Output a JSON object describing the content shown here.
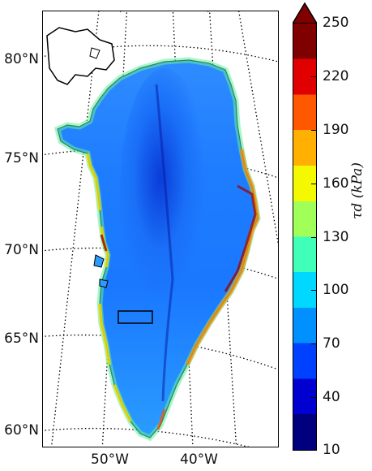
{
  "map": {
    "lat_labels": [
      "80°N",
      "75°N",
      "70°N",
      "65°N",
      "60°N"
    ],
    "lon_labels": [
      "50°W",
      "40°W"
    ]
  },
  "colorbar": {
    "ticks": [
      "250",
      "220",
      "190",
      "160",
      "130",
      "100",
      "70",
      "40",
      "10"
    ],
    "label": "τd (kPa)",
    "colors": [
      "#00007f",
      "#0000d0",
      "#0040ff",
      "#0090ff",
      "#00d8ff",
      "#40ffb8",
      "#a0ff58",
      "#f4f800",
      "#ffb000",
      "#ff5800",
      "#e00000",
      "#800000"
    ]
  }
}
